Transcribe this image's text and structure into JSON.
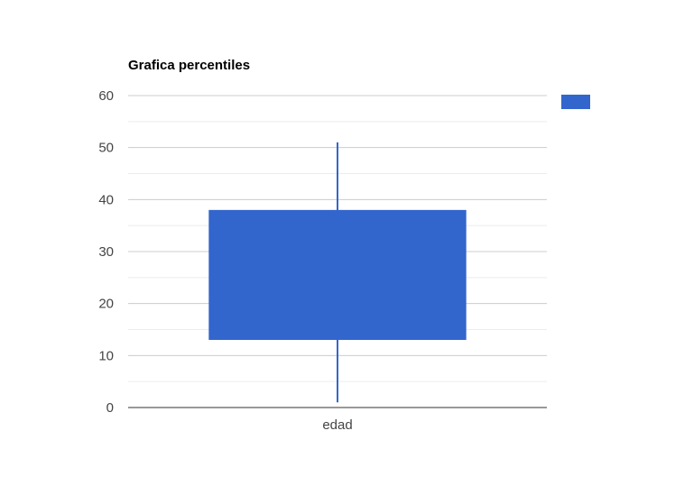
{
  "chart_data": {
    "type": "candlestick",
    "title": "Grafica percentiles",
    "categories": [
      "edad"
    ],
    "series": [
      {
        "name": "",
        "color": "#3366cc",
        "low": [
          1
        ],
        "box_low": [
          13
        ],
        "box_high": [
          38
        ],
        "high": [
          51
        ]
      }
    ],
    "xlabel": "",
    "ylabel": "",
    "ylim": [
      0,
      60
    ],
    "yticks": [
      0,
      10,
      20,
      30,
      40,
      50,
      60
    ],
    "ytick_labels": [
      "0",
      "10",
      "20",
      "30",
      "40",
      "50",
      "60"
    ],
    "grid": true,
    "legend_position": "right"
  }
}
